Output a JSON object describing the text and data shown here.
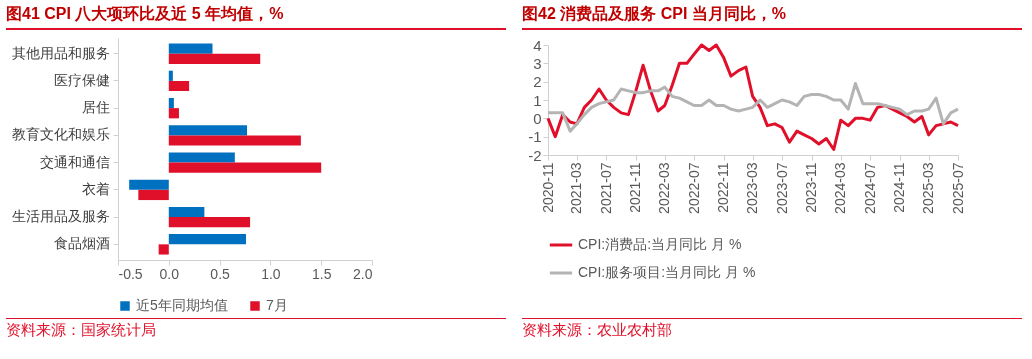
{
  "chart_data": [
    {
      "type": "bar",
      "orientation": "horizontal",
      "title": "图41  CPI 八大项环比及近 5 年均值，%",
      "categories": [
        "其他用品和服务",
        "医疗保健",
        "居住",
        "教育文化和娱乐",
        "交通和通信",
        "衣着",
        "生活用品及服务",
        "食品烟酒"
      ],
      "series": [
        {
          "name": "近5年同期均值",
          "color": "#0070c0",
          "values": [
            0.43,
            0.04,
            0.05,
            0.77,
            0.65,
            -0.39,
            0.35,
            0.76
          ]
        },
        {
          "name": "7月",
          "color": "#e0102a",
          "values": [
            0.9,
            0.2,
            0.1,
            1.3,
            1.5,
            -0.3,
            0.8,
            -0.1
          ]
        }
      ],
      "xlim": [
        -0.5,
        2
      ],
      "xticks": [
        -0.5,
        {
          "value": 0,
          "label": "0.0"
        },
        0.5,
        {
          "value": 1,
          "label": "1.0"
        },
        1.5,
        {
          "value": 2,
          "label": "2.0"
        }
      ],
      "legend": "bottom",
      "grid": false,
      "annotations": [
        "资料来源：国家统计局"
      ]
    },
    {
      "type": "line",
      "title": "图42  消费品及服务 CPI 当月同比，%",
      "x": [
        "2020-11",
        "2020-12",
        "2021-01",
        "2021-02",
        "2021-03",
        "2021-04",
        "2021-05",
        "2021-06",
        "2021-07",
        "2021-08",
        "2021-09",
        "2021-10",
        "2021-11",
        "2021-12",
        "2022-01",
        "2022-02",
        "2022-03",
        "2022-04",
        "2022-05",
        "2022-06",
        "2022-07",
        "2022-08",
        "2022-09",
        "2022-10",
        "2022-11",
        "2022-12",
        "2023-01",
        "2023-02",
        "2023-03",
        "2023-04",
        "2023-05",
        "2023-06",
        "2023-07",
        "2023-08",
        "2023-09",
        "2023-10",
        "2023-11",
        "2023-12",
        "2024-01",
        "2024-02",
        "2024-03",
        "2024-04",
        "2024-05",
        "2024-06",
        "2024-07",
        "2024-08",
        "2024-09",
        "2024-10",
        "2024-11",
        "2024-12",
        "2025-01",
        "2025-02",
        "2025-03",
        "2025-04",
        "2025-05",
        "2025-06",
        "2025-07"
      ],
      "series": [
        {
          "name": "CPI:消费品:当月同比 月 %",
          "color": "#e0102a",
          "values": [
            0,
            -1.0,
            0.2,
            -0.2,
            -0.3,
            0.6,
            1.0,
            1.6,
            1.0,
            0.6,
            0.3,
            0.2,
            1.5,
            2.9,
            1.5,
            0.4,
            0.7,
            1.8,
            3.0,
            3.0,
            3.5,
            4.0,
            3.7,
            4.0,
            3.3,
            2.3,
            2.6,
            2.8,
            1.2,
            0.6,
            -0.4,
            -0.3,
            -0.5,
            -1.3,
            -0.7,
            -0.9,
            -1.1,
            -1.4,
            -1.1,
            -1.7,
            -0.1,
            -0.4,
            0,
            0,
            -0.1,
            0.6,
            0.7,
            0.5,
            0.3,
            0.1,
            -0.2,
            0.1,
            -0.9,
            -0.4,
            -0.3,
            -0.2,
            -0.4
          ]
        },
        {
          "name": "CPI:服务项目:当月同比 月 %",
          "color": "#b4b4b4",
          "values": [
            0.3,
            0.3,
            0.3,
            -0.7,
            -0.3,
            0.2,
            0.6,
            0.8,
            0.9,
            1.0,
            1.6,
            1.5,
            1.4,
            1.4,
            1.5,
            1.5,
            1.7,
            1.2,
            1.1,
            0.9,
            0.7,
            0.7,
            1.0,
            0.7,
            0.7,
            0.5,
            0.4,
            0.5,
            0.6,
            1.0,
            0.6,
            0.8,
            1.0,
            0.9,
            0.7,
            1.2,
            1.3,
            1.3,
            1.2,
            1.0,
            1.0,
            0.5,
            1.9,
            0.8,
            0.8,
            0.8,
            0.7,
            0.6,
            0.5,
            0.2,
            0.4,
            0.4,
            0.5,
            1.1,
            -0.3,
            0.3,
            0.5
          ]
        }
      ],
      "xlim": [
        "2020-11",
        "2025-07"
      ],
      "xticks": [
        "2020-11",
        "2021-03",
        "2021-07",
        "2021-11",
        "2022-03",
        "2022-07",
        "2022-11",
        "2023-03",
        "2023-07",
        "2023-11",
        "2024-03",
        "2024-07",
        "2024-11",
        "2025-03",
        "2025-07"
      ],
      "ylim": [
        -2,
        4
      ],
      "yticks": [
        -2,
        -1,
        0,
        1,
        2,
        3,
        4
      ],
      "legend": "bottom",
      "grid": false,
      "line_style": "solid",
      "marker": "none",
      "annotations": [
        "资料来源：农业农村部"
      ]
    }
  ]
}
